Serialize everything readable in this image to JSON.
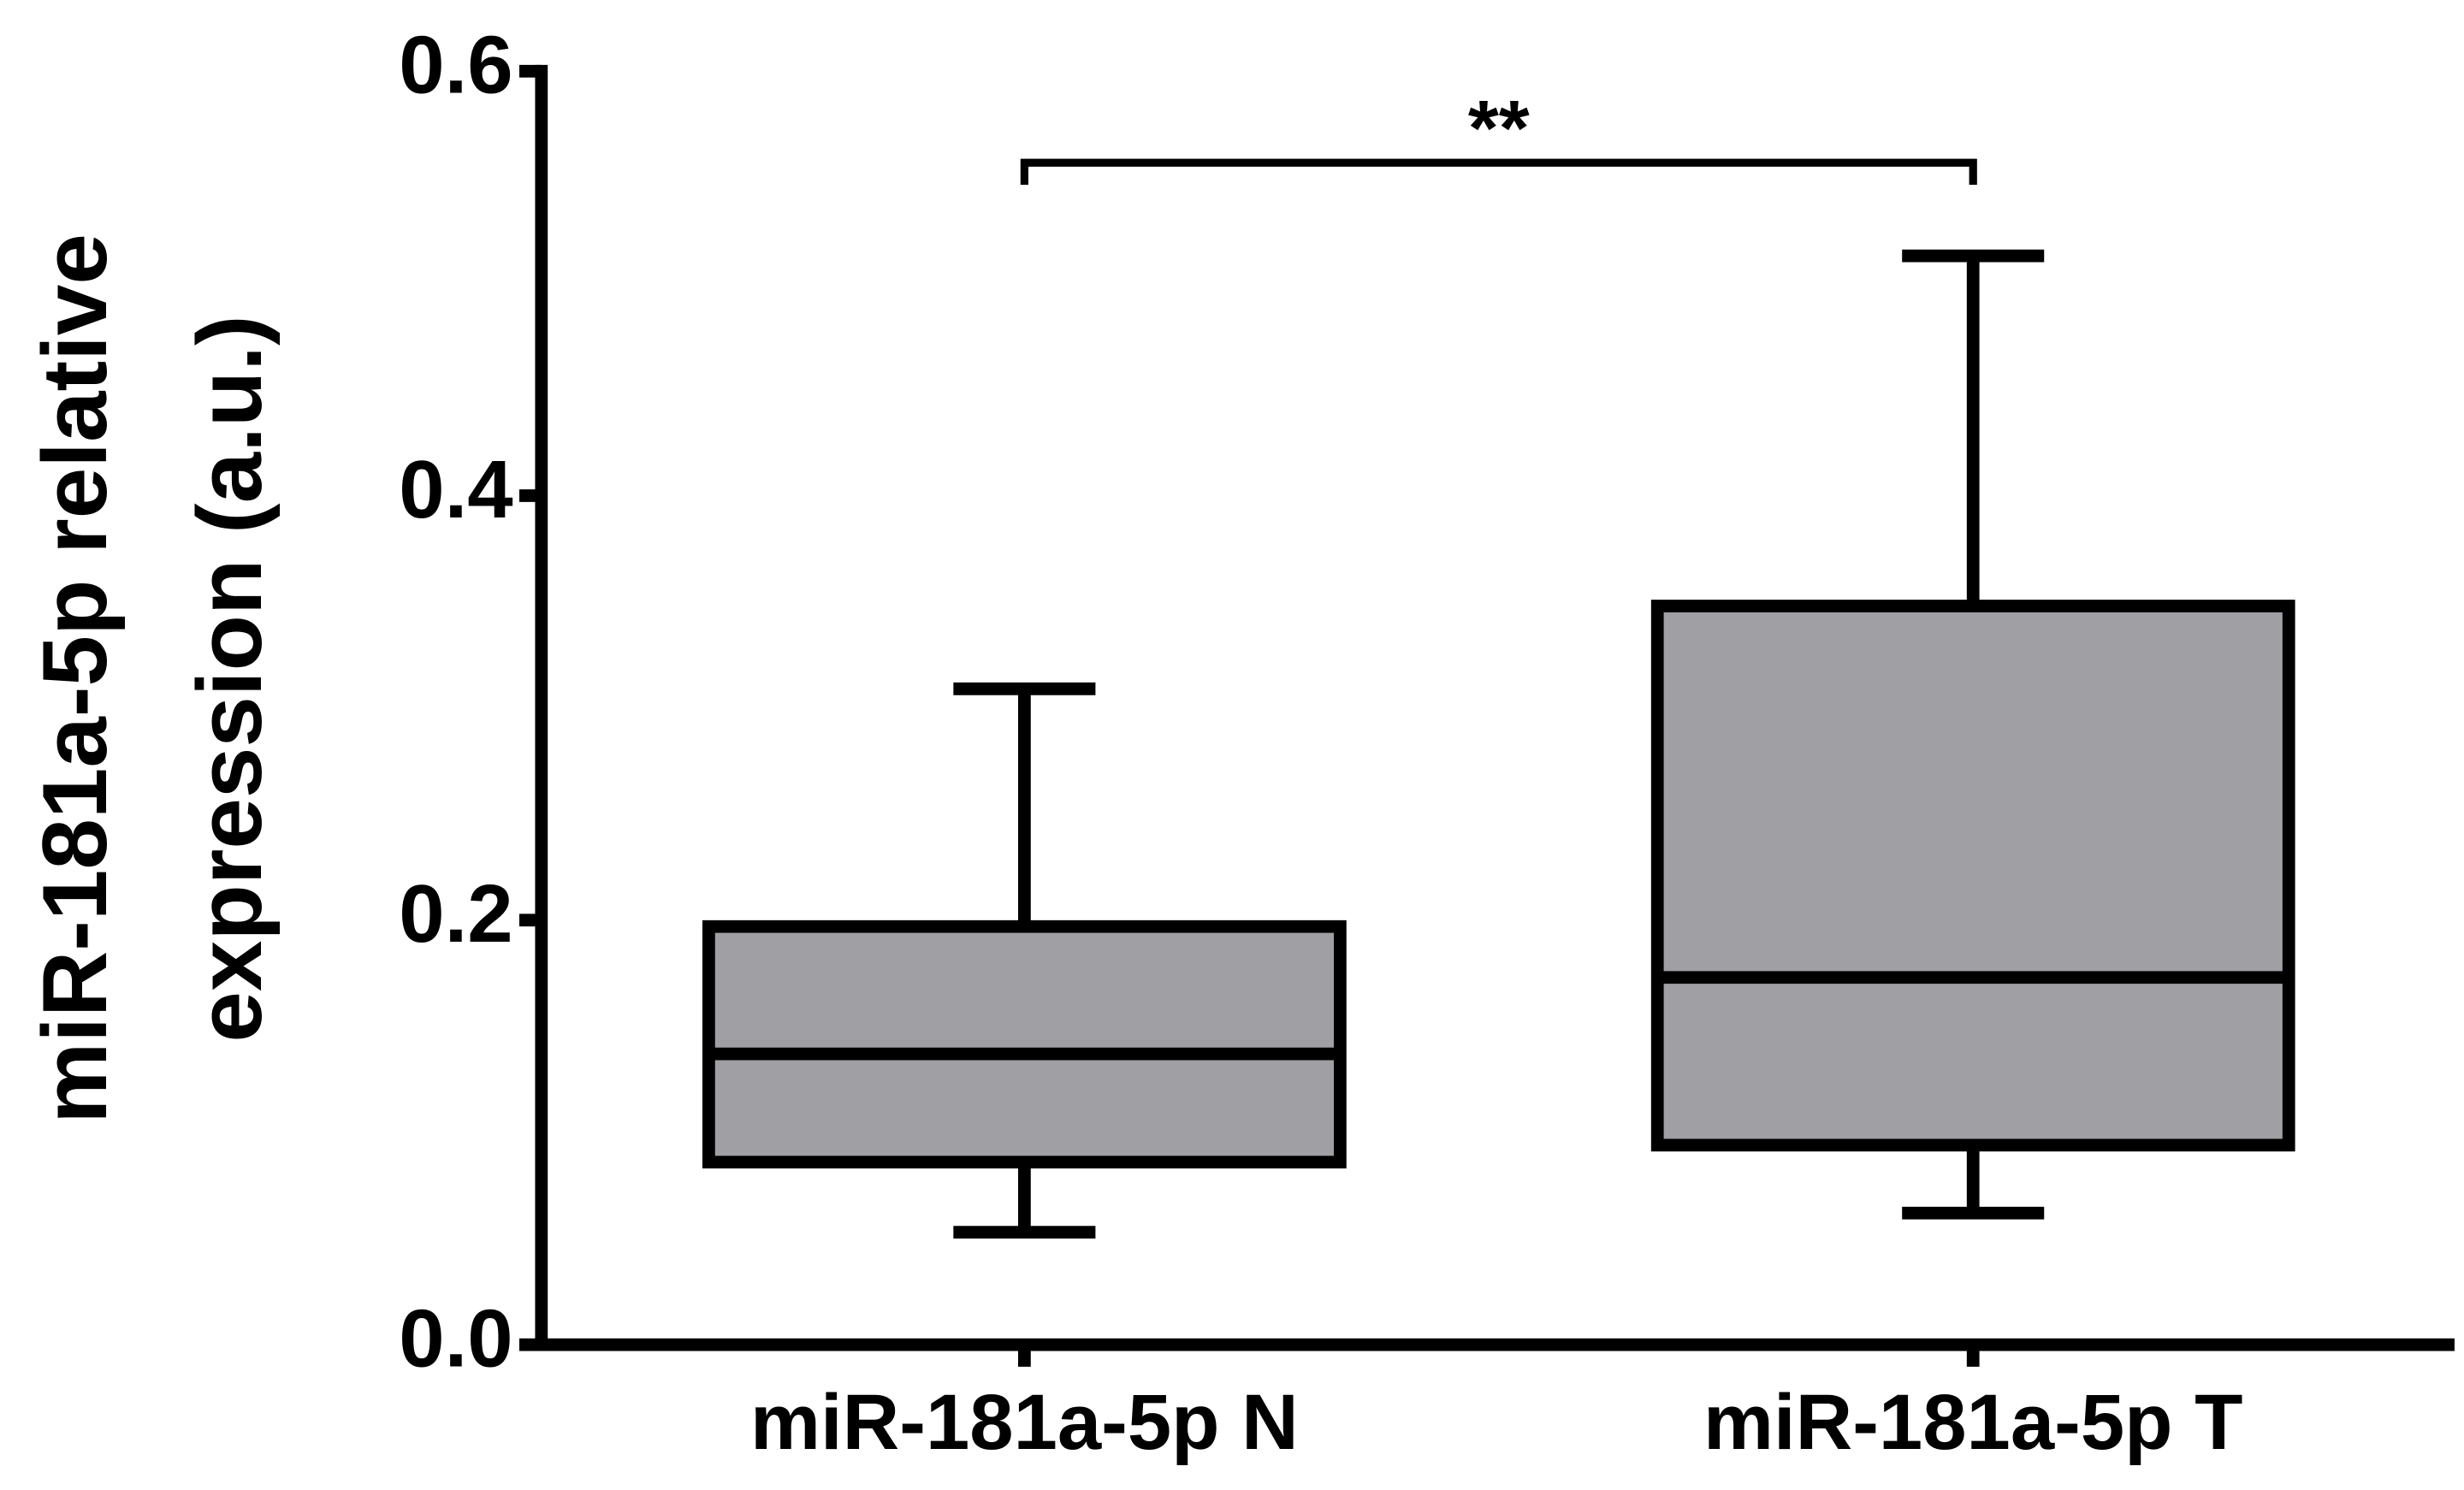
{
  "chart_data": {
    "type": "box",
    "ylabel": [
      "miR-181a-5p relative",
      "expression (a.u.)"
    ],
    "categories": [
      "miR-181a-5p N",
      "miR-181a-5p T"
    ],
    "boxes": [
      {
        "whisker_low": 0.053,
        "q1": 0.086,
        "median": 0.137,
        "q3": 0.197,
        "whisker_high": 0.309
      },
      {
        "whisker_low": 0.062,
        "q1": 0.094,
        "median": 0.173,
        "q3": 0.348,
        "whisker_high": 0.513
      }
    ],
    "color": "#a0a0a4",
    "ylim": [
      0,
      0.6
    ],
    "yticks": [
      {
        "value": 0,
        "label": "0.0"
      },
      0.2,
      0.4,
      0.6
    ],
    "annotations": [
      {
        "text": "**",
        "from": 0,
        "to": 1
      }
    ],
    "grid": false
  }
}
